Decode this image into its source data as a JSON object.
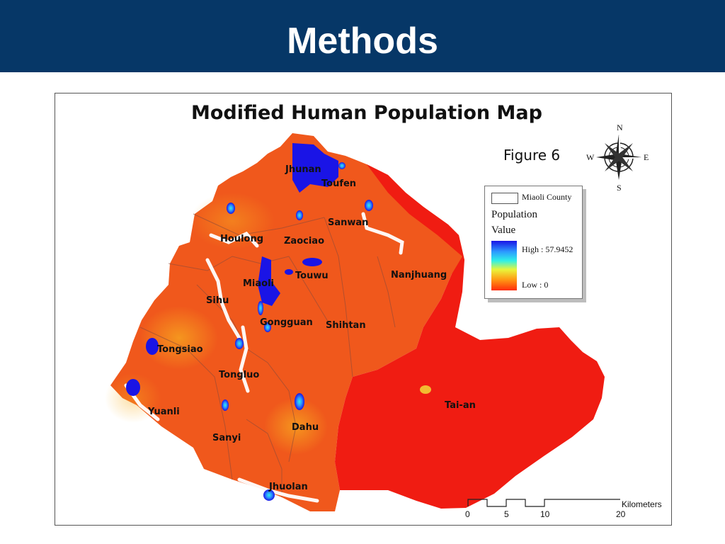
{
  "slide": {
    "title": "Methods",
    "header_color": "#063767"
  },
  "map": {
    "title": "Modified Human Population Map",
    "figure_label": "Figure 6",
    "towns": [
      "Jhunan",
      "Toufen",
      "Sanwan",
      "Houlong",
      "Zaociao",
      "Touwu",
      "Nanjhuang",
      "Miaoli",
      "Sihu",
      "Gongguan",
      "Shihtan",
      "Tongsiao",
      "Tongluo",
      "Tai-an",
      "Yuanli",
      "Dahu",
      "Sanyi",
      "Jhuolan"
    ],
    "legend": {
      "county_label": "Miaoli County",
      "heading": "Population",
      "subheading": "Value",
      "high_label": "High : 57.9452",
      "low_label": "Low : 0",
      "colors": [
        "#1a14e6",
        "#2c9bff",
        "#2ef0e8",
        "#e9f53a",
        "#ff9a14",
        "#ff2c0a"
      ]
    },
    "compass": {
      "n": "N",
      "s": "S",
      "e": "E",
      "w": "W"
    },
    "scale": {
      "ticks": [
        "0",
        "5",
        "10",
        "20"
      ],
      "unit": "Kilometers"
    }
  }
}
